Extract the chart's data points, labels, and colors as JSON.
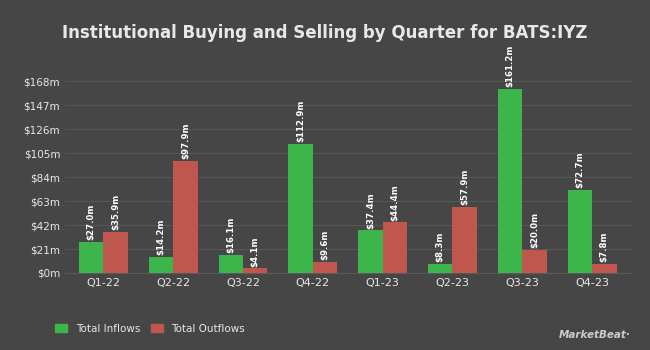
{
  "title": "Institutional Buying and Selling by Quarter for BATS:IYZ",
  "quarters": [
    "Q1-22",
    "Q2-22",
    "Q3-22",
    "Q4-22",
    "Q1-23",
    "Q2-23",
    "Q3-23",
    "Q4-23"
  ],
  "inflows": [
    27.0,
    14.2,
    16.1,
    112.9,
    37.4,
    8.3,
    161.2,
    72.7
  ],
  "outflows": [
    35.9,
    97.9,
    4.1,
    9.6,
    44.4,
    57.9,
    20.0,
    7.8
  ],
  "inflow_labels": [
    "$27.0m",
    "$14.2m",
    "$16.1m",
    "$112.9m",
    "$37.4m",
    "$8.3m",
    "$161.2m",
    "$72.7m"
  ],
  "outflow_labels": [
    "$35.9m",
    "$97.9m",
    "$4.1m",
    "$9.6m",
    "$44.4m",
    "$57.9m",
    "$20.0m",
    "$7.8m"
  ],
  "inflow_color": "#3cb54a",
  "outflow_color": "#c0574f",
  "background_color": "#464646",
  "plot_bg_color": "#464646",
  "grid_color": "#5a5a5a",
  "text_color": "#e8e8e8",
  "bar_label_color": "#ffffff",
  "legend_inflow": "Total Inflows",
  "legend_outflow": "Total Outflows",
  "yticks": [
    0,
    21,
    42,
    63,
    84,
    105,
    126,
    147,
    168
  ],
  "ytick_labels": [
    "$0m",
    "$21m",
    "$42m",
    "$63m",
    "$84m",
    "$105m",
    "$126m",
    "$147m",
    "$168m"
  ],
  "ylim": [
    0,
    190
  ],
  "bar_width": 0.35,
  "title_fontsize": 12,
  "label_fontsize": 6.2,
  "tick_fontsize": 7.5,
  "legend_fontsize": 7.5,
  "xtick_fontsize": 8
}
